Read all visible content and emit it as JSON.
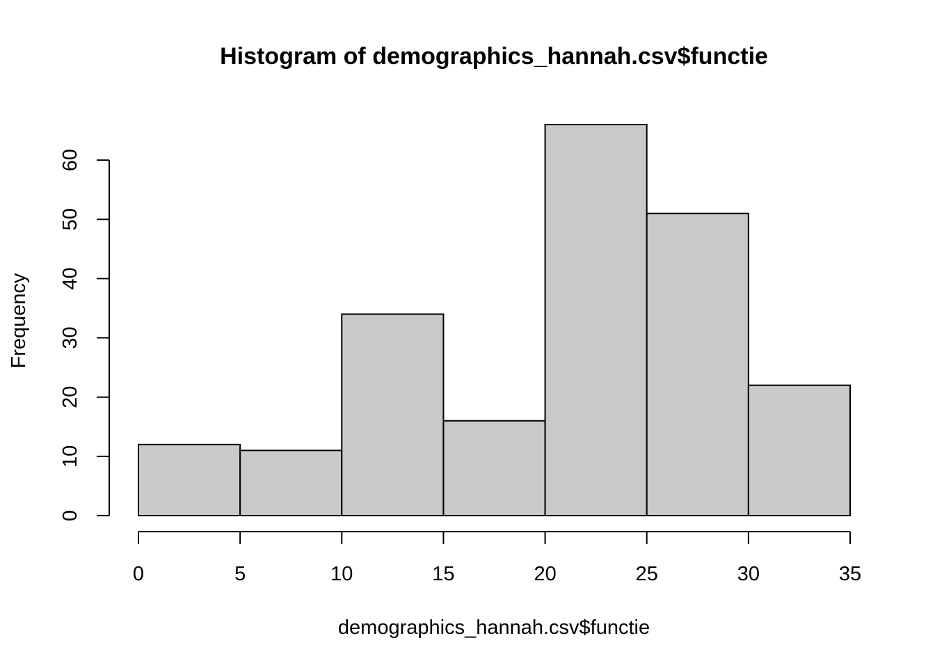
{
  "chart_data": {
    "type": "bar",
    "title": "Histogram of demographics_hannah.csv$functie",
    "xlabel": "demographics_hannah.csv$functie",
    "ylabel": "Frequency",
    "bins": [
      {
        "start": 0,
        "end": 5,
        "count": 12
      },
      {
        "start": 5,
        "end": 10,
        "count": 11
      },
      {
        "start": 10,
        "end": 15,
        "count": 34
      },
      {
        "start": 15,
        "end": 20,
        "count": 16
      },
      {
        "start": 20,
        "end": 25,
        "count": 66
      },
      {
        "start": 25,
        "end": 30,
        "count": 51
      },
      {
        "start": 30,
        "end": 35,
        "count": 22
      }
    ],
    "xticks": [
      0,
      5,
      10,
      15,
      20,
      25,
      30,
      35
    ],
    "yticks": [
      0,
      10,
      20,
      30,
      40,
      50,
      60
    ],
    "xlim": [
      0,
      35
    ],
    "ylim": [
      0,
      66
    ],
    "grid": false,
    "bar_color": "#c9c9c9",
    "edge_color": "#000000"
  }
}
